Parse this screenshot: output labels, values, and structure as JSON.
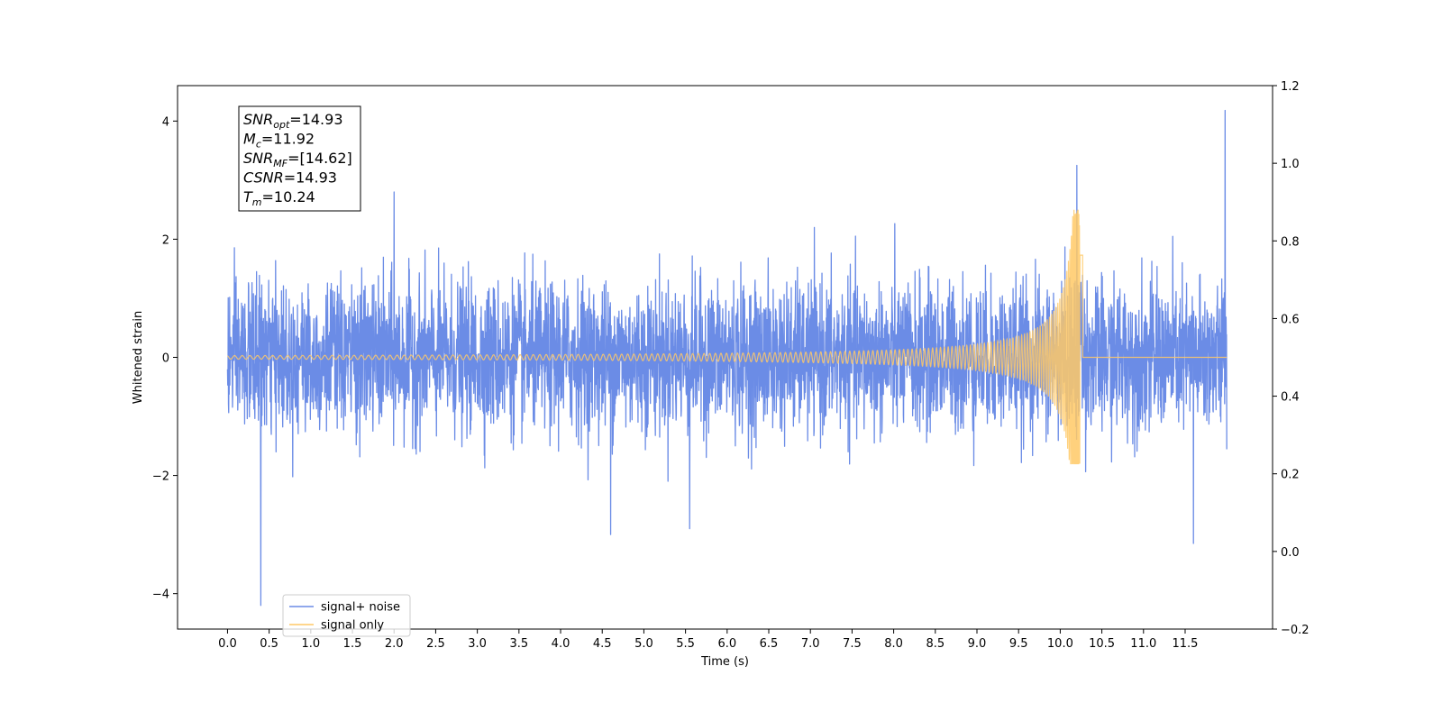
{
  "chart_data": {
    "type": "line",
    "title": "",
    "xlabel": "Time (s)",
    "ylabel": "Whitened strain",
    "xlim": [
      -0.6,
      12.55
    ],
    "ylim": [
      -4.6,
      4.6
    ],
    "y2lim": [
      -0.2,
      1.2
    ],
    "x_ticks": [
      0.0,
      0.5,
      1.0,
      1.5,
      2.0,
      2.5,
      3.0,
      3.5,
      4.0,
      4.5,
      5.0,
      5.5,
      6.0,
      6.5,
      7.0,
      7.5,
      8.0,
      8.5,
      9.0,
      9.5,
      10.0,
      10.5,
      11.0,
      11.5
    ],
    "x_tick_labels": [
      "0.0",
      "0.5",
      "1.0",
      "1.5",
      "2.0",
      "2.5",
      "3.0",
      "3.5",
      "4.0",
      "4.5",
      "5.0",
      "5.5",
      "6.0",
      "6.5",
      "7.0",
      "7.5",
      "8.0",
      "8.5",
      "9.0",
      "9.5",
      "10.0",
      "10.5",
      "11.0",
      "11.5"
    ],
    "y_ticks": [
      -4,
      -2,
      0,
      2,
      4
    ],
    "y_tick_labels": [
      "−4",
      "−2",
      "0",
      "2",
      "4"
    ],
    "y2_ticks": [
      -0.2,
      0.0,
      0.2,
      0.4,
      0.6,
      0.8,
      1.0,
      1.2
    ],
    "y2_tick_labels": [
      "−0.2",
      "0.0",
      "0.2",
      "0.4",
      "0.6",
      "0.8",
      "1.0",
      "1.2"
    ],
    "grid": false,
    "legend_position": "bottom-left",
    "series": [
      {
        "name": "signal+ noise",
        "color": "#6b8ce6",
        "description": "whitened noise with injected chirp",
        "x_range": [
          0.0,
          12.0
        ],
        "sigma": 0.62,
        "peaks": [
          {
            "x": 0.4,
            "y": -4.2
          },
          {
            "x": 11.98,
            "y": 4.18
          },
          {
            "x": 11.6,
            "y": -3.15
          },
          {
            "x": 10.2,
            "y": 3.25
          },
          {
            "x": 4.6,
            "y": -3.0
          },
          {
            "x": 5.55,
            "y": -2.9
          },
          {
            "x": 2.0,
            "y": 2.8
          }
        ]
      },
      {
        "name": "signal only",
        "color": "#ffc966",
        "description": "chirp waveform",
        "x_range": [
          0.0,
          12.0
        ],
        "merger_time": 10.24,
        "start_amplitude": 0.03,
        "peak_amplitude": 2.5,
        "peak_negative": -1.8
      }
    ],
    "annotation": {
      "lines": [
        {
          "var": "SNR",
          "sub": "opt",
          "value": "=14.93"
        },
        {
          "var": "M",
          "sub": "c",
          "value": "=11.92"
        },
        {
          "var": "SNR",
          "sub": "MF",
          "value": "=[14.62]"
        },
        {
          "var": "CSNR",
          "sub": "",
          "value": "=14.93"
        },
        {
          "var": "T",
          "sub": "m",
          "value": "=10.24"
        }
      ]
    }
  }
}
